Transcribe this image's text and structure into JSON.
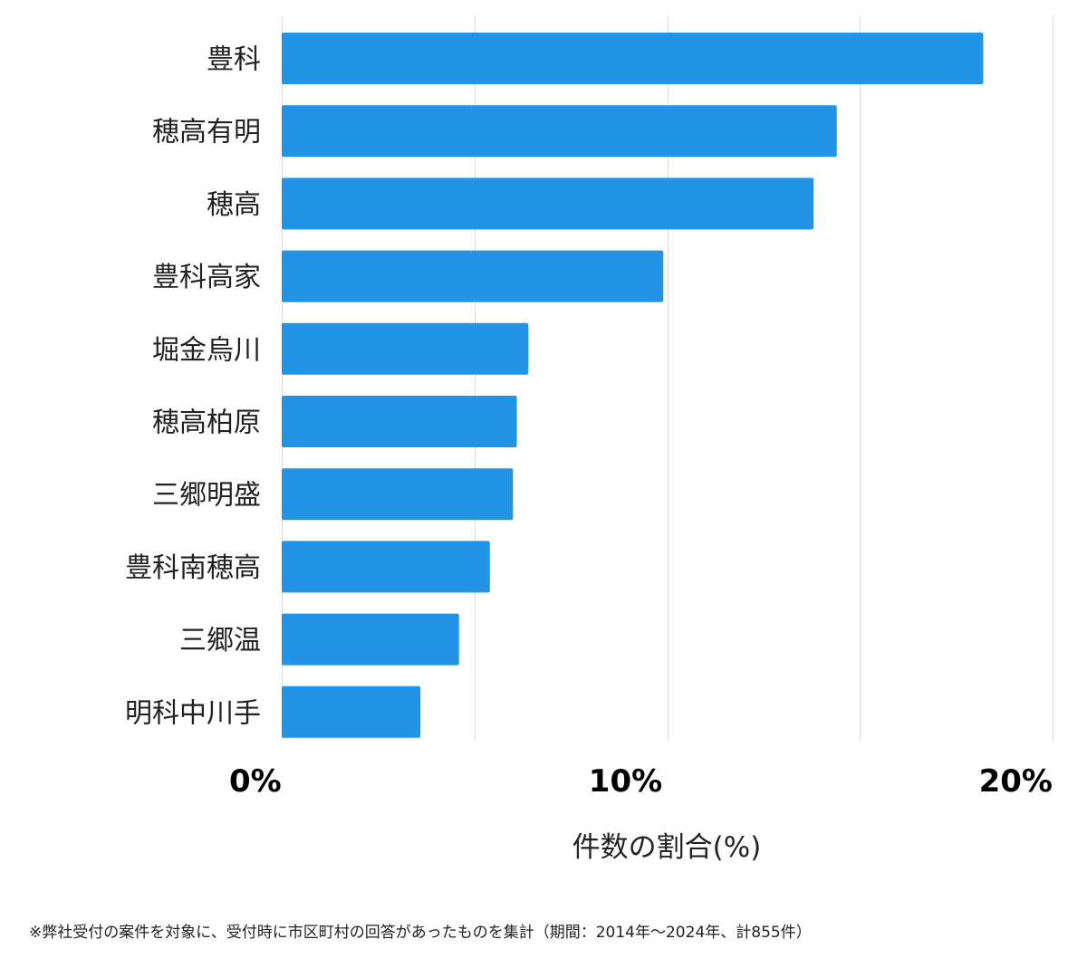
{
  "chart_data": {
    "type": "bar",
    "orientation": "horizontal",
    "categories": [
      "豊科",
      "穂高有明",
      "穂高",
      "豊科高家",
      "堀金烏川",
      "穂高柏原",
      "三郷明盛",
      "豊科南穂高",
      "三郷温",
      "明科中川手"
    ],
    "values": [
      18.2,
      14.4,
      13.8,
      9.9,
      6.4,
      6.1,
      6.0,
      5.4,
      4.6,
      3.6
    ],
    "xlim": [
      0,
      20
    ],
    "xticks": [
      0,
      10,
      20
    ],
    "xtick_labels": [
      "0%",
      "10%",
      "20%"
    ],
    "xlabel": "件数の割合(%)",
    "ylabel": "",
    "bar_color": "#2393e6",
    "grid_color": "#dddddd",
    "grid": true,
    "footnote": "※弊社受付の案件を対象に、受付時に市区町村の回答があったものを集計（期間：2014年～2024年、計855件）"
  }
}
